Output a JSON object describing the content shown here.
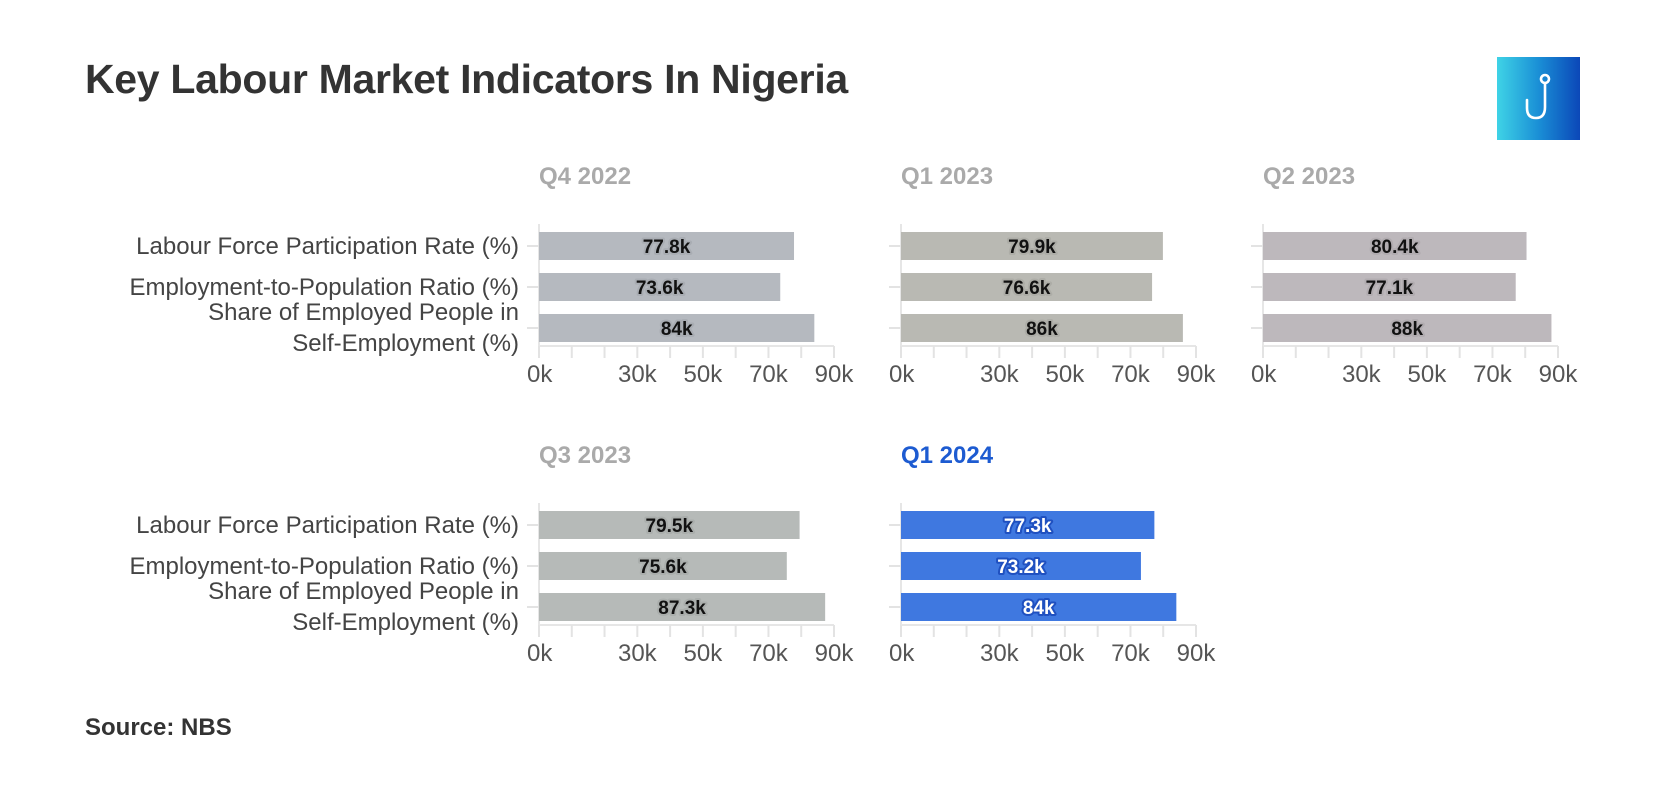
{
  "title": "Key Labour Market Indicators In Nigeria",
  "source": "Source: NBS",
  "logo_icon": "hook-icon",
  "chart_data": {
    "type": "bar",
    "orientation": "horizontal",
    "categories": [
      "Labour Force Participation Rate (%)",
      "Employment-to-Population Ratio (%)",
      "Share of Employed People in Self-Employment (%)"
    ],
    "category_lines": [
      [
        "Labour Force Participation Rate (%)"
      ],
      [
        "Employment-to-Population Ratio (%)"
      ],
      [
        "Share of Employed People in",
        "Self-Employment (%)"
      ]
    ],
    "xlim": [
      0,
      90000
    ],
    "x_ticks": [
      0,
      30000,
      50000,
      70000,
      90000
    ],
    "x_tick_labels": [
      "0k",
      "30k",
      "50k",
      "70k",
      "90k"
    ],
    "grid": false,
    "legend": "none",
    "panels": [
      {
        "title": "Q4 2022",
        "color": "#b5b9bf",
        "title_color": "#aaaaaa",
        "label_color": "#111111",
        "halo_color": "#a9adb3",
        "values": [
          77800,
          73600,
          84000
        ],
        "value_labels": [
          "77.8k",
          "73.6k",
          "84k"
        ]
      },
      {
        "title": "Q1 2023",
        "color": "#b9b9b3",
        "title_color": "#aaaaaa",
        "label_color": "#111111",
        "halo_color": "#adada7",
        "values": [
          79900,
          76600,
          86000
        ],
        "value_labels": [
          "79.9k",
          "76.6k",
          "86k"
        ]
      },
      {
        "title": "Q2 2023",
        "color": "#bdb8bc",
        "title_color": "#aaaaaa",
        "label_color": "#111111",
        "halo_color": "#b1acb0",
        "values": [
          80400,
          77100,
          88000
        ],
        "value_labels": [
          "80.4k",
          "77.1k",
          "88k"
        ]
      },
      {
        "title": "Q3 2023",
        "color": "#b6bab8",
        "title_color": "#aaaaaa",
        "label_color": "#111111",
        "halo_color": "#aaaeac",
        "values": [
          79500,
          75600,
          87300
        ],
        "value_labels": [
          "79.5k",
          "75.6k",
          "87.3k"
        ]
      },
      {
        "title": "Q1 2024",
        "color": "#3f78e0",
        "title_color": "#1d5bd1",
        "label_color": "#ffffff",
        "halo_color": "#1f50c0",
        "values": [
          77300,
          73200,
          84000
        ],
        "value_labels": [
          "77.3k",
          "73.2k",
          "84k"
        ]
      }
    ]
  }
}
